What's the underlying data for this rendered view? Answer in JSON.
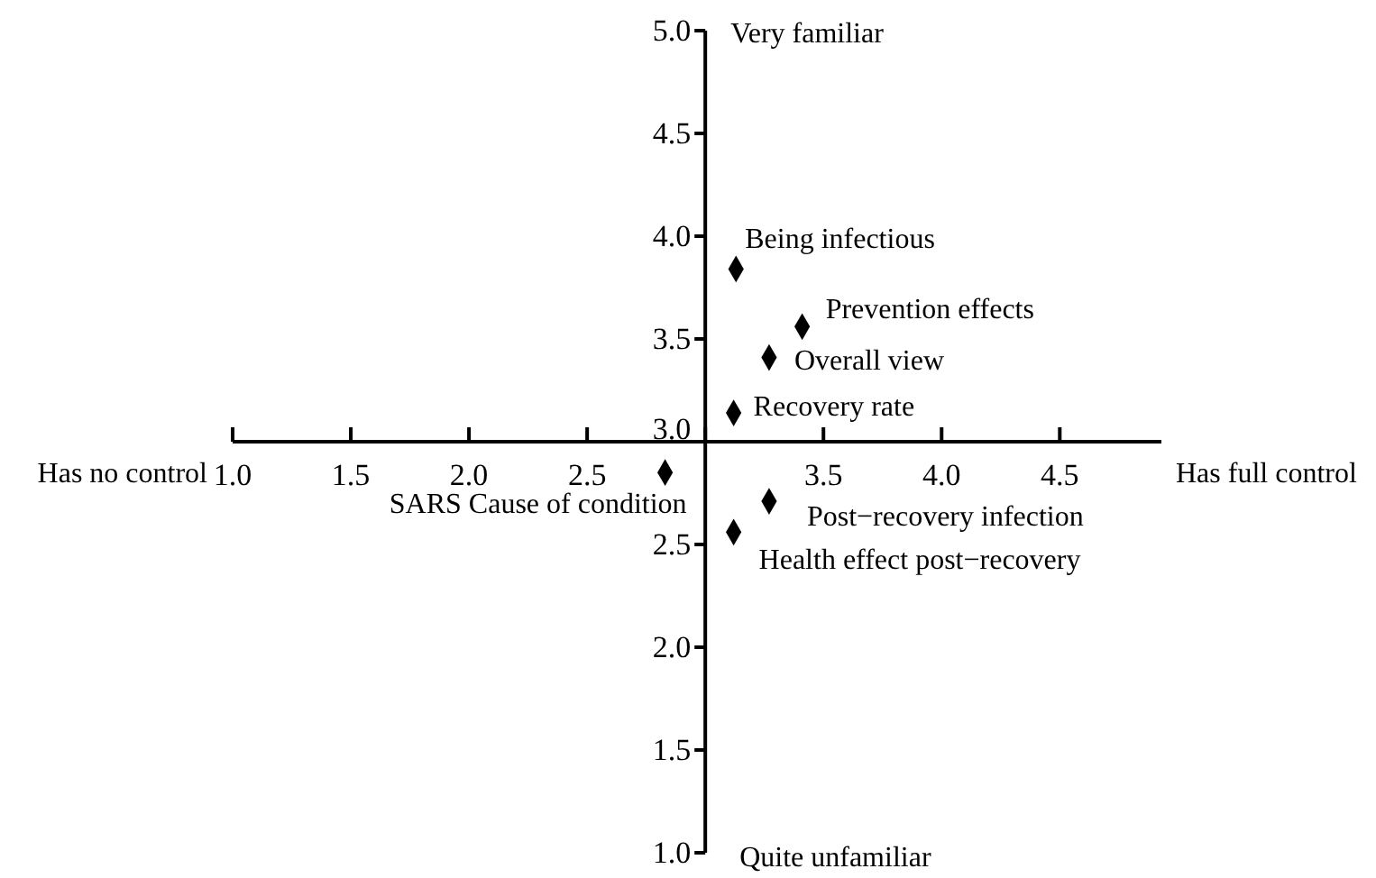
{
  "chart_data": {
    "type": "scatter",
    "marker": "diamond",
    "xlim": [
      1,
      4.93
    ],
    "xticks": [
      {
        "value": 1,
        "label": "1.0"
      },
      {
        "value": 1.5,
        "label": "1.5"
      },
      {
        "value": 2,
        "label": "2.0"
      },
      {
        "value": 2.5,
        "label": "2.5"
      },
      {
        "value": 3,
        "label": null
      },
      {
        "value": 3.5,
        "label": "3.5"
      },
      {
        "value": 4,
        "label": "4.0"
      },
      {
        "value": 4.5,
        "label": "4.5"
      }
    ],
    "ylim": [
      1,
      5
    ],
    "yticks": [
      {
        "value": 1,
        "label": "1.0"
      },
      {
        "value": 1.5,
        "label": "1.5"
      },
      {
        "value": 2,
        "label": "2.0"
      },
      {
        "value": 2.5,
        "label": "2.5"
      },
      {
        "value": 3,
        "label": "3.0"
      },
      {
        "value": 3.5,
        "label": "3.5"
      },
      {
        "value": 4,
        "label": "4.0"
      },
      {
        "value": 4.5,
        "label": "4.5"
      },
      {
        "value": 5,
        "label": "5.0"
      }
    ],
    "annotations": [
      "Has no control",
      "Has full control",
      "Very familiar",
      "Quite unfamiliar"
    ],
    "series": [
      {
        "name": "Being infectious",
        "color": "#000000",
        "x": [
          3.13
        ],
        "values": [
          3.84
        ]
      },
      {
        "name": "Prevention effects",
        "color": "#000000",
        "x": [
          3.41
        ],
        "values": [
          3.56
        ]
      },
      {
        "name": "Overall view",
        "color": "#000000",
        "x": [
          3.27
        ],
        "values": [
          3.41
        ]
      },
      {
        "name": "Recovery rate",
        "color": "#000000",
        "x": [
          3.12
        ],
        "values": [
          3.14
        ]
      },
      {
        "name": "SARS Cause of condition",
        "color": "#000000",
        "x": [
          2.83
        ],
        "values": [
          2.85
        ]
      },
      {
        "name": "Post−recovery infection",
        "color": "#000000",
        "x": [
          3.27
        ],
        "values": [
          2.71
        ]
      },
      {
        "name": "Health effect post−recovery",
        "color": "#000000",
        "x": [
          3.12
        ],
        "values": [
          2.56
        ]
      }
    ]
  }
}
